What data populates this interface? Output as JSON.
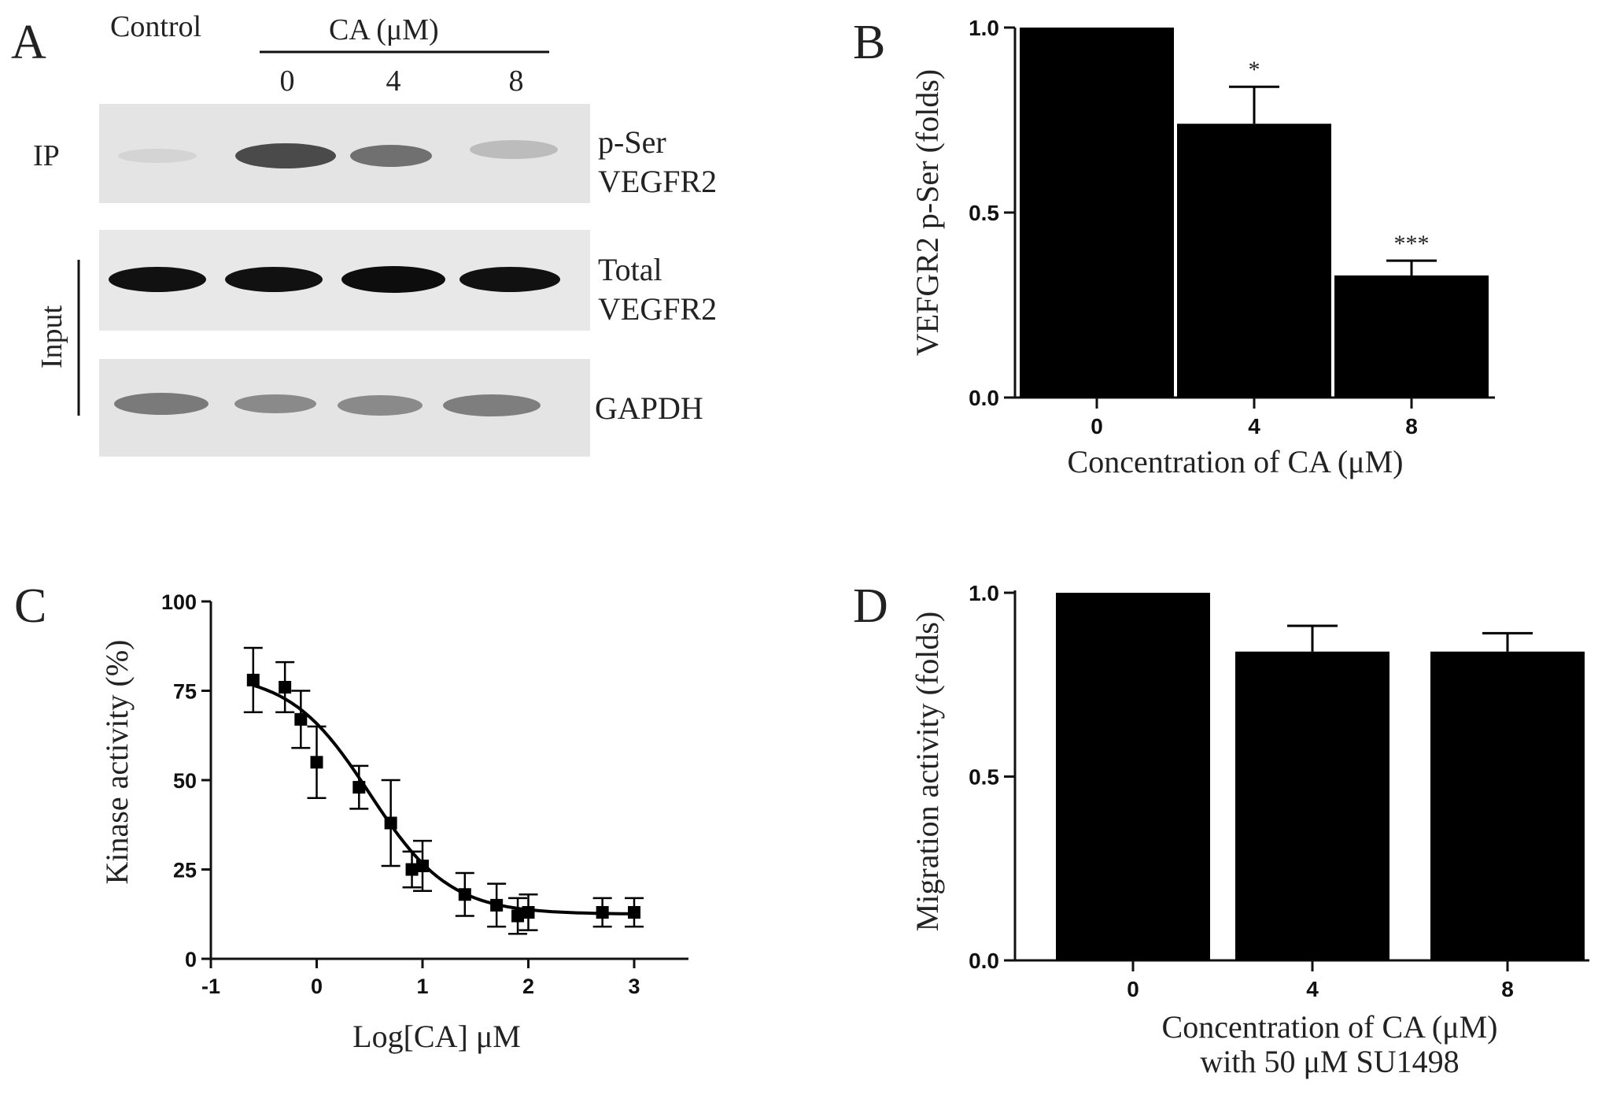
{
  "panels": {
    "a": {
      "letter": "A",
      "control_label": "Control",
      "treatment_label": "CA (μM)",
      "lane_labels": [
        "0",
        "4",
        "8"
      ],
      "ip_label": "IP",
      "input_label": "Input",
      "blots": [
        {
          "label_lines": [
            "p-Ser",
            "VEGFR2"
          ]
        },
        {
          "label_lines": [
            "Total",
            "VEGFR2"
          ]
        },
        {
          "label_lines": [
            "GAPDH"
          ]
        }
      ]
    },
    "b": {
      "letter": "B"
    },
    "c": {
      "letter": "C"
    },
    "d": {
      "letter": "D"
    }
  },
  "chart_data": [
    {
      "panel": "B",
      "type": "bar",
      "categories": [
        "0",
        "4",
        "8"
      ],
      "values": [
        1.0,
        0.74,
        0.33
      ],
      "errors": [
        0.0,
        0.1,
        0.04
      ],
      "significance": [
        "",
        "*",
        "***"
      ],
      "ylim": [
        0,
        1.0
      ],
      "yticks": [
        "0.0",
        "0.5",
        "1.0"
      ],
      "xlabel": "Concentration of CA (μM)",
      "ylabel": "VEFGR2 p-Ser (folds)",
      "bar_color": "#000000"
    },
    {
      "panel": "C",
      "type": "scatter",
      "x": [
        -0.6,
        -0.3,
        -0.15,
        0.0,
        0.4,
        0.7,
        0.9,
        1.0,
        1.4,
        1.7,
        1.9,
        2.0,
        2.7,
        3.0
      ],
      "y": [
        78,
        76,
        67,
        55,
        48,
        38,
        25,
        26,
        18,
        15,
        12,
        13,
        13,
        13
      ],
      "errors": [
        9,
        7,
        8,
        10,
        6,
        12,
        5,
        7,
        6,
        6,
        5,
        5,
        4,
        4
      ],
      "fit_curve": "sigmoid",
      "xlim": [
        -1,
        3
      ],
      "ylim": [
        0,
        100
      ],
      "xticks": [
        "-1",
        "0",
        "1",
        "2",
        "3"
      ],
      "yticks": [
        "0",
        "25",
        "50",
        "75",
        "100"
      ],
      "xlabel": "Log[CA] μM",
      "ylabel": "Kinase activity (%)",
      "marker_color": "#000000"
    },
    {
      "panel": "D",
      "type": "bar",
      "categories": [
        "0",
        "4",
        "8"
      ],
      "values": [
        1.0,
        0.84,
        0.84
      ],
      "errors": [
        0.0,
        0.07,
        0.05
      ],
      "ylim": [
        0,
        1.0
      ],
      "yticks": [
        "0.0",
        "0.5",
        "1.0"
      ],
      "xlabel_lines": [
        "Concentration of CA (μM)",
        "with 50 μM SU1498"
      ],
      "ylabel": "Migration activity (folds)",
      "bar_color": "#000000"
    }
  ]
}
